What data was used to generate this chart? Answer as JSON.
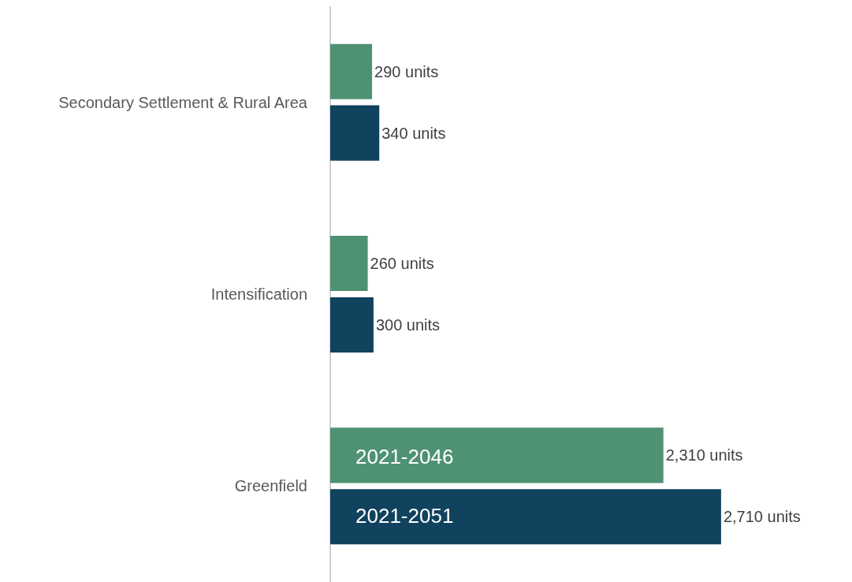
{
  "chart_data": {
    "type": "bar",
    "orientation": "horizontal",
    "categories": [
      "Secondary Settlement & Rural Area",
      "Intensification",
      "Greenfield"
    ],
    "series": [
      {
        "name": "2021-2046",
        "color": "#4f9273",
        "values": [
          290,
          260,
          2310
        ],
        "value_labels": [
          "290 units",
          "260 units",
          "2,310 units"
        ]
      },
      {
        "name": "2021-2051",
        "color": "#11425e",
        "values": [
          340,
          300,
          2710
        ],
        "value_labels": [
          "340 units",
          "300 units",
          "2,710 units"
        ]
      }
    ],
    "legend": false,
    "grid": false,
    "tick_labels": "y"
  }
}
